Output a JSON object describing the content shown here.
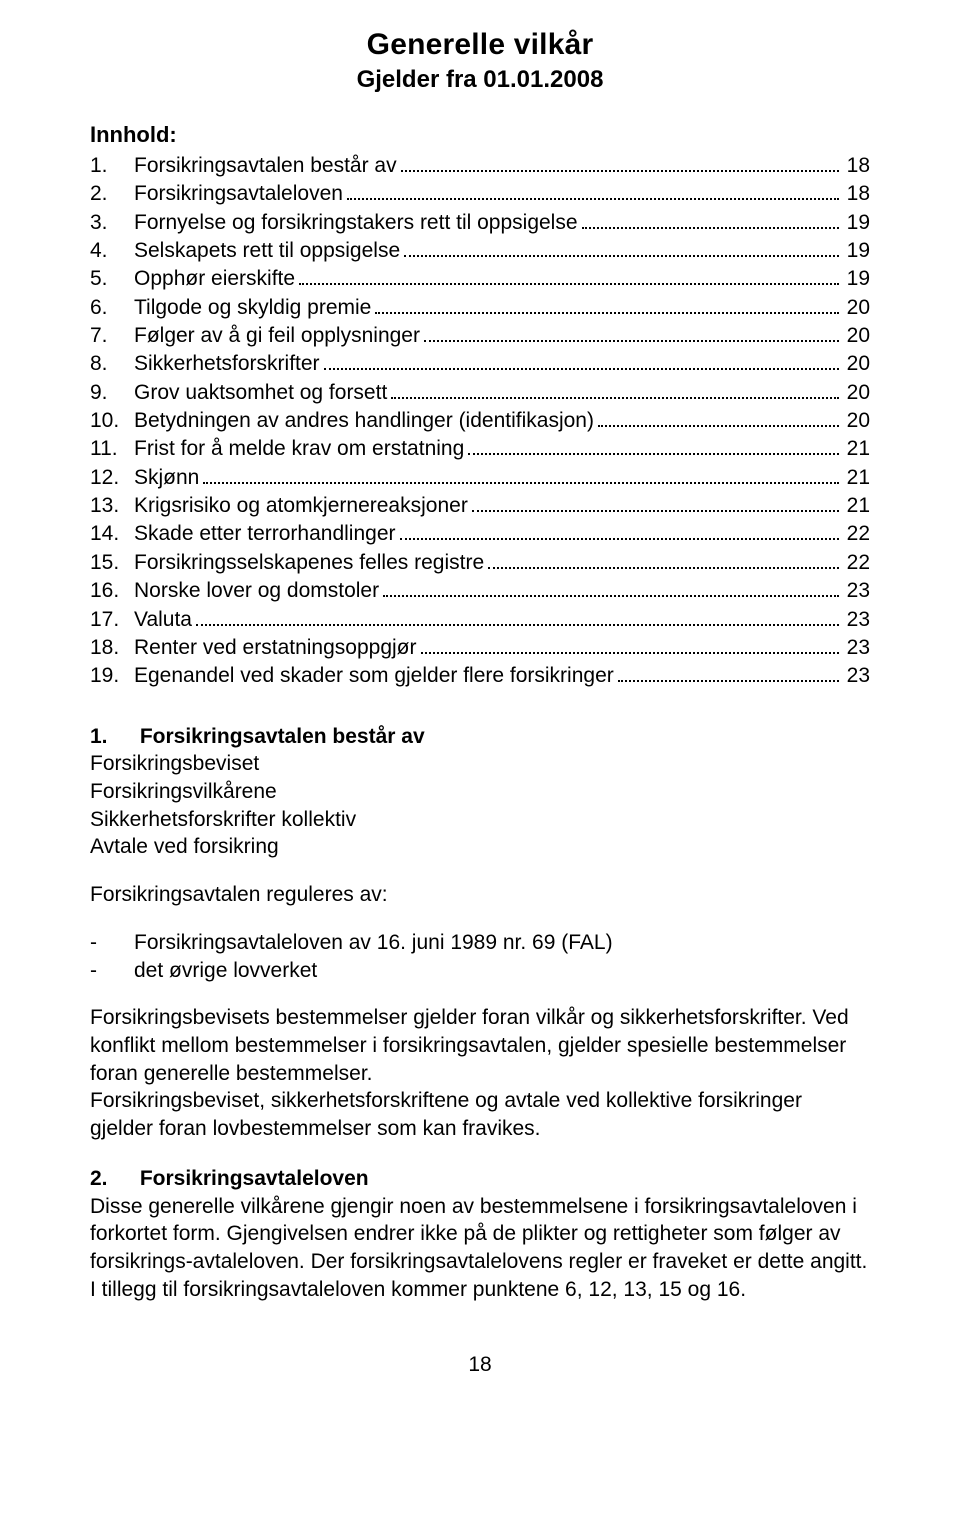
{
  "title": "Generelle vilkår",
  "subtitle": "Gjelder fra 01.01.2008",
  "innhold_label": "Innhold:",
  "toc": [
    {
      "n": "1.",
      "label": "Forsikringsavtalen består av",
      "page": "18"
    },
    {
      "n": "2.",
      "label": "Forsikringsavtaleloven",
      "page": "18"
    },
    {
      "n": "3.",
      "label": "Fornyelse og forsikringstakers rett til oppsigelse",
      "page": "19"
    },
    {
      "n": "4.",
      "label": "Selskapets rett til oppsigelse",
      "page": "19"
    },
    {
      "n": "5.",
      "label": "Opphør eierskifte",
      "page": "19"
    },
    {
      "n": "6.",
      "label": "Tilgode og skyldig premie",
      "page": "20"
    },
    {
      "n": "7.",
      "label": "Følger av å gi feil opplysninger",
      "page": "20"
    },
    {
      "n": "8.",
      "label": "Sikkerhetsforskrifter",
      "page": "20"
    },
    {
      "n": "9.",
      "label": "Grov uaktsomhet og forsett",
      "page": "20"
    },
    {
      "n": "10.",
      "label": "Betydningen av andres handlinger (identifikasjon)",
      "page": "20"
    },
    {
      "n": "11.",
      "label": "Frist for å melde krav om erstatning",
      "page": "21"
    },
    {
      "n": "12.",
      "label": "Skjønn",
      "page": "21"
    },
    {
      "n": "13.",
      "label": "Krigsrisiko og atomkjernereaksjoner",
      "page": "21"
    },
    {
      "n": "14.",
      "label": "Skade etter terrorhandlinger",
      "page": "22"
    },
    {
      "n": "15.",
      "label": "Forsikringsselskapenes felles registre",
      "page": "22"
    },
    {
      "n": "16.",
      "label": "Norske lover og domstoler",
      "page": "23"
    },
    {
      "n": "17.",
      "label": "Valuta",
      "page": "23"
    },
    {
      "n": "18.",
      "label": "Renter ved erstatningsoppgjør",
      "page": "23"
    },
    {
      "n": "19.",
      "label": "Egenandel ved skader som gjelder flere forsikringer",
      "page": "23"
    }
  ],
  "section1": {
    "num": "1.",
    "title": "Forsikringsavtalen består av",
    "lines": [
      "Forsikringsbeviset",
      "Forsikringsvilkårene",
      "Sikkerhetsforskrifter kollektiv",
      "Avtale ved forsikring"
    ],
    "reguleres": "Forsikringsavtalen reguleres av:",
    "bullets": [
      "Forsikringsavtaleloven av 16. juni 1989 nr. 69 (FAL)",
      "det øvrige lovverket"
    ],
    "p1": "Forsikringsbevisets bestemmelser gjelder foran vilkår og sikkerhetsforskrifter. Ved konflikt mellom bestemmelser i forsikringsavtalen, gjelder spesielle bestemmelser foran generelle bestemmelser.",
    "p2": "Forsikringsbeviset, sikkerhetsforskriftene og avtale ved kollektive forsikringer gjelder foran lovbestemmelser som kan fravikes."
  },
  "section2": {
    "num": "2.",
    "title": "Forsikringsavtaleloven",
    "body": "Disse generelle vilkårene gjengir noen av bestemmelsene i forsikringsavtaleloven i forkortet form. Gjengivelsen endrer ikke på de plikter og rettigheter som følger av forsikrings-avtaleloven. Der forsikringsavtalelovens regler er fraveket er dette angitt. I tillegg til forsikringsavtaleloven kommer punktene 6, 12, 13, 15 og 16."
  },
  "page_number": "18"
}
